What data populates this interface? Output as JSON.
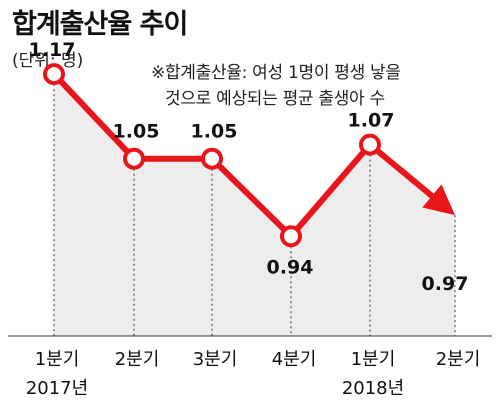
{
  "header": {
    "title": "합계출산율 추이",
    "unit": "(단위: 명)",
    "note_line1": "※합계출산율: 여성 1명이 평생 낳을",
    "note_line2": "것으로 예상되는 평균 출생아 수"
  },
  "colors": {
    "line": "#e8151b",
    "area": "#ededed",
    "marker_fill": "#ffffff",
    "text": "#111111"
  },
  "chart_data": {
    "type": "line",
    "title": "합계출산율 추이",
    "ylabel": "(단위: 명)",
    "categories": [
      "1분기",
      "2분기",
      "3분기",
      "4분기",
      "1분기",
      "2분기"
    ],
    "year_labels": [
      "2017년",
      "",
      "",
      "",
      "2018년",
      ""
    ],
    "values": [
      1.17,
      1.05,
      1.05,
      0.94,
      1.07,
      0.97
    ],
    "value_labels": [
      "1.17",
      "1.05",
      "1.05",
      "0.94",
      "1.07",
      "0.97"
    ],
    "ylim": [
      0.79,
      1.19
    ],
    "last_point_arrow": true,
    "area_fill": true,
    "grid": false
  }
}
